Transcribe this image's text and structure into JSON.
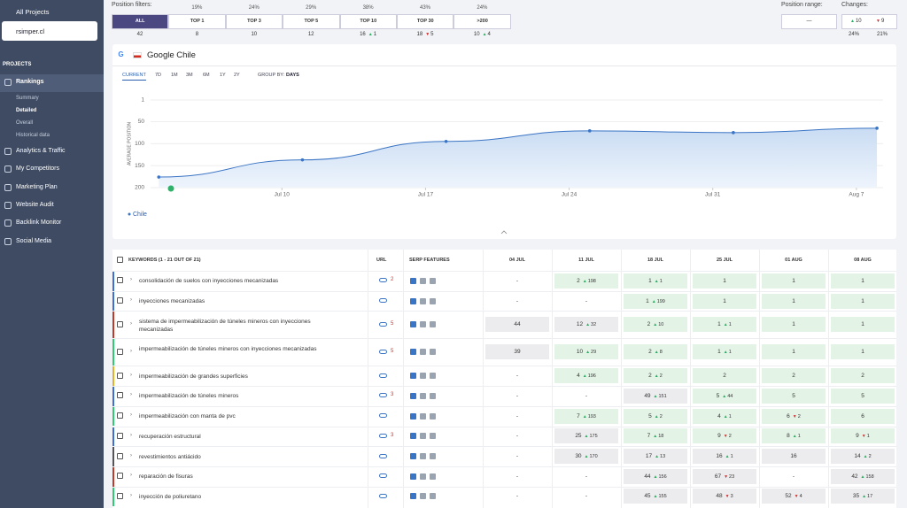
{
  "sidebar": {
    "all_projects": "All Projects",
    "project": "rsimper.cl",
    "section": "PROJECTS",
    "nav": [
      {
        "label": "Rankings",
        "children": [
          "Summary",
          "Detailed",
          "Overall",
          "Historical data"
        ]
      },
      {
        "label": "Analytics & Traffic"
      },
      {
        "label": "My Competitors"
      },
      {
        "label": "Marketing Plan"
      },
      {
        "label": "Website Audit"
      },
      {
        "label": "Backlink Monitor"
      },
      {
        "label": "Social Media"
      }
    ]
  },
  "filters": {
    "label": "Position filters:",
    "options": [
      {
        "label": "ALL",
        "count": 42
      },
      {
        "label": "TOP 1",
        "share": "19%",
        "count": 8
      },
      {
        "label": "TOP 3",
        "share": "24%",
        "count": 10
      },
      {
        "label": "TOP 5",
        "share": "29%",
        "count": 12
      },
      {
        "label": "TOP 10",
        "share": "38%",
        "count": 16,
        "change": 1,
        "dir": "up"
      },
      {
        "label": "TOP 30",
        "share": "43%",
        "count": 18,
        "change": 5,
        "dir": "down"
      },
      {
        "label": ">200",
        "share": "24%",
        "count": 10,
        "change": 4,
        "dir": "up"
      }
    ]
  },
  "range": {
    "label": "Position range:",
    "value": "—"
  },
  "changes": {
    "label": "Changes:",
    "up": 10,
    "down": 9,
    "up_share": "24%",
    "down_share": "21%"
  },
  "chart": {
    "engine": "G",
    "title": "Google Chile",
    "tabs": [
      "CURRENT",
      "7D",
      "1M",
      "3M",
      "6M",
      "1Y",
      "2Y"
    ],
    "group_by": "GROUP BY:",
    "group_value": "DAYS",
    "y_label": "AVERAGE POSITION",
    "ylim": [
      1,
      200
    ],
    "yticks": [
      1,
      50,
      100,
      150,
      200
    ],
    "inverted": true,
    "xlim": [
      3.6,
      39.3
    ],
    "xticks": [
      {
        "value": 10,
        "label": "Jul 10"
      },
      {
        "value": 17,
        "label": "Jul 17"
      },
      {
        "value": 24,
        "label": "Jul 24"
      },
      {
        "value": 31,
        "label": "Jul 31"
      },
      {
        "value": 38,
        "label": "Aug 7"
      }
    ],
    "series": [
      {
        "name": "Chile",
        "color": "#3a74c4",
        "x": [
          4,
          11,
          18,
          25,
          32,
          39
        ],
        "values": [
          176,
          137,
          95,
          71,
          75,
          65
        ]
      }
    ]
  },
  "table": {
    "keywords_header": "KEYWORDS (1 - 21 OUT OF 21)",
    "url_header": "URL",
    "serp_header": "SERP FEATURES",
    "dates": [
      "04 JUL",
      "11 JUL",
      "18 JUL",
      "25 JUL",
      "01 AUG",
      "08 AUG"
    ],
    "rows": [
      {
        "keyword": "consolidación de suelos con inyecciones mecanizadas",
        "color": "#3b6fd1",
        "url_count": 2,
        "cells": [
          "-",
          {
            "pos": 2,
            "change": 198,
            "dir": "up"
          },
          {
            "pos": 1,
            "change": 1,
            "dir": "up"
          },
          {
            "pos": 1
          },
          {
            "pos": 1
          },
          {
            "pos": 1
          }
        ]
      },
      {
        "keyword": "inyecciones mecanizadas",
        "color": "#3b6fd1",
        "cells": [
          "-",
          "-",
          {
            "pos": 1,
            "change": 199,
            "dir": "up"
          },
          {
            "pos": 1
          },
          {
            "pos": 1
          },
          {
            "pos": 1
          }
        ]
      },
      {
        "keyword": "sistema de impermeabilización de túneles mineros con inyecciones mecanizadas",
        "color": "#c0392b",
        "url_count": 5,
        "cells": [
          {
            "pos": 44
          },
          {
            "pos": 12,
            "change": 32,
            "dir": "up"
          },
          {
            "pos": 2,
            "change": 10,
            "dir": "up"
          },
          {
            "pos": 1,
            "change": 1,
            "dir": "up"
          },
          {
            "pos": 1
          },
          {
            "pos": 1
          }
        ]
      },
      {
        "keyword": "impermeabilización de túneles mineros con inyecciones mecanizadas",
        "color": "#2ecc71",
        "url_count": 5,
        "cells": [
          {
            "pos": 39
          },
          {
            "pos": 10,
            "change": 29,
            "dir": "up"
          },
          {
            "pos": 2,
            "change": 8,
            "dir": "up"
          },
          {
            "pos": 1,
            "change": 1,
            "dir": "up"
          },
          {
            "pos": 1
          },
          {
            "pos": 1
          }
        ]
      },
      {
        "keyword": "impermeabilización de grandes superficies",
        "color": "#e1b12c",
        "cells": [
          "-",
          {
            "pos": 4,
            "change": 196,
            "dir": "up"
          },
          {
            "pos": 2,
            "change": 2,
            "dir": "up"
          },
          {
            "pos": 2
          },
          {
            "pos": 2
          },
          {
            "pos": 2
          }
        ]
      },
      {
        "keyword": "impermeabilización de túneles mineros",
        "color": "#3b6fd1",
        "url_count": 3,
        "cells": [
          "-",
          "-",
          {
            "pos": 49,
            "change": 151,
            "dir": "up"
          },
          {
            "pos": 5,
            "change": 44,
            "dir": "up"
          },
          {
            "pos": 5
          },
          {
            "pos": 5
          }
        ]
      },
      {
        "keyword": "impermeabilización con manta de pvc",
        "color": "#2ecc71",
        "cells": [
          "-",
          {
            "pos": 7,
            "change": 193,
            "dir": "up"
          },
          {
            "pos": 5,
            "change": 2,
            "dir": "up"
          },
          {
            "pos": 4,
            "change": 1,
            "dir": "up"
          },
          {
            "pos": 6,
            "change": 2,
            "dir": "down"
          },
          {
            "pos": 6
          }
        ]
      },
      {
        "keyword": "recuperación estructural",
        "color": "#3b6fd1",
        "url_count": 3,
        "cells": [
          "-",
          {
            "pos": 25,
            "change": 175,
            "dir": "up"
          },
          {
            "pos": 7,
            "change": 18,
            "dir": "up"
          },
          {
            "pos": 9,
            "change": 2,
            "dir": "down"
          },
          {
            "pos": 8,
            "change": 1,
            "dir": "up"
          },
          {
            "pos": 9,
            "change": 1,
            "dir": "down"
          }
        ]
      },
      {
        "keyword": "revestimientos antiácido",
        "color": "#555555",
        "cells": [
          "-",
          {
            "pos": 30,
            "change": 170,
            "dir": "up"
          },
          {
            "pos": 17,
            "change": 13,
            "dir": "up"
          },
          {
            "pos": 16,
            "change": 1,
            "dir": "up"
          },
          {
            "pos": 16
          },
          {
            "pos": 14,
            "change": 2,
            "dir": "up"
          }
        ]
      },
      {
        "keyword": "reparación de fisuras",
        "color": "#c0392b",
        "cells": [
          "-",
          "-",
          {
            "pos": 44,
            "change": 156,
            "dir": "up"
          },
          {
            "pos": 67,
            "change": 23,
            "dir": "down"
          },
          "-",
          {
            "pos": 42,
            "change": 158,
            "dir": "up"
          }
        ]
      },
      {
        "keyword": "inyección de poliuretano",
        "color": "#2ecc71",
        "cells": [
          "-",
          "-",
          {
            "pos": 45,
            "change": 155,
            "dir": "up"
          },
          {
            "pos": 48,
            "change": 3,
            "dir": "down"
          },
          {
            "pos": 52,
            "change": 4,
            "dir": "down"
          },
          {
            "pos": 35,
            "change": 17,
            "dir": "up"
          }
        ]
      }
    ]
  }
}
